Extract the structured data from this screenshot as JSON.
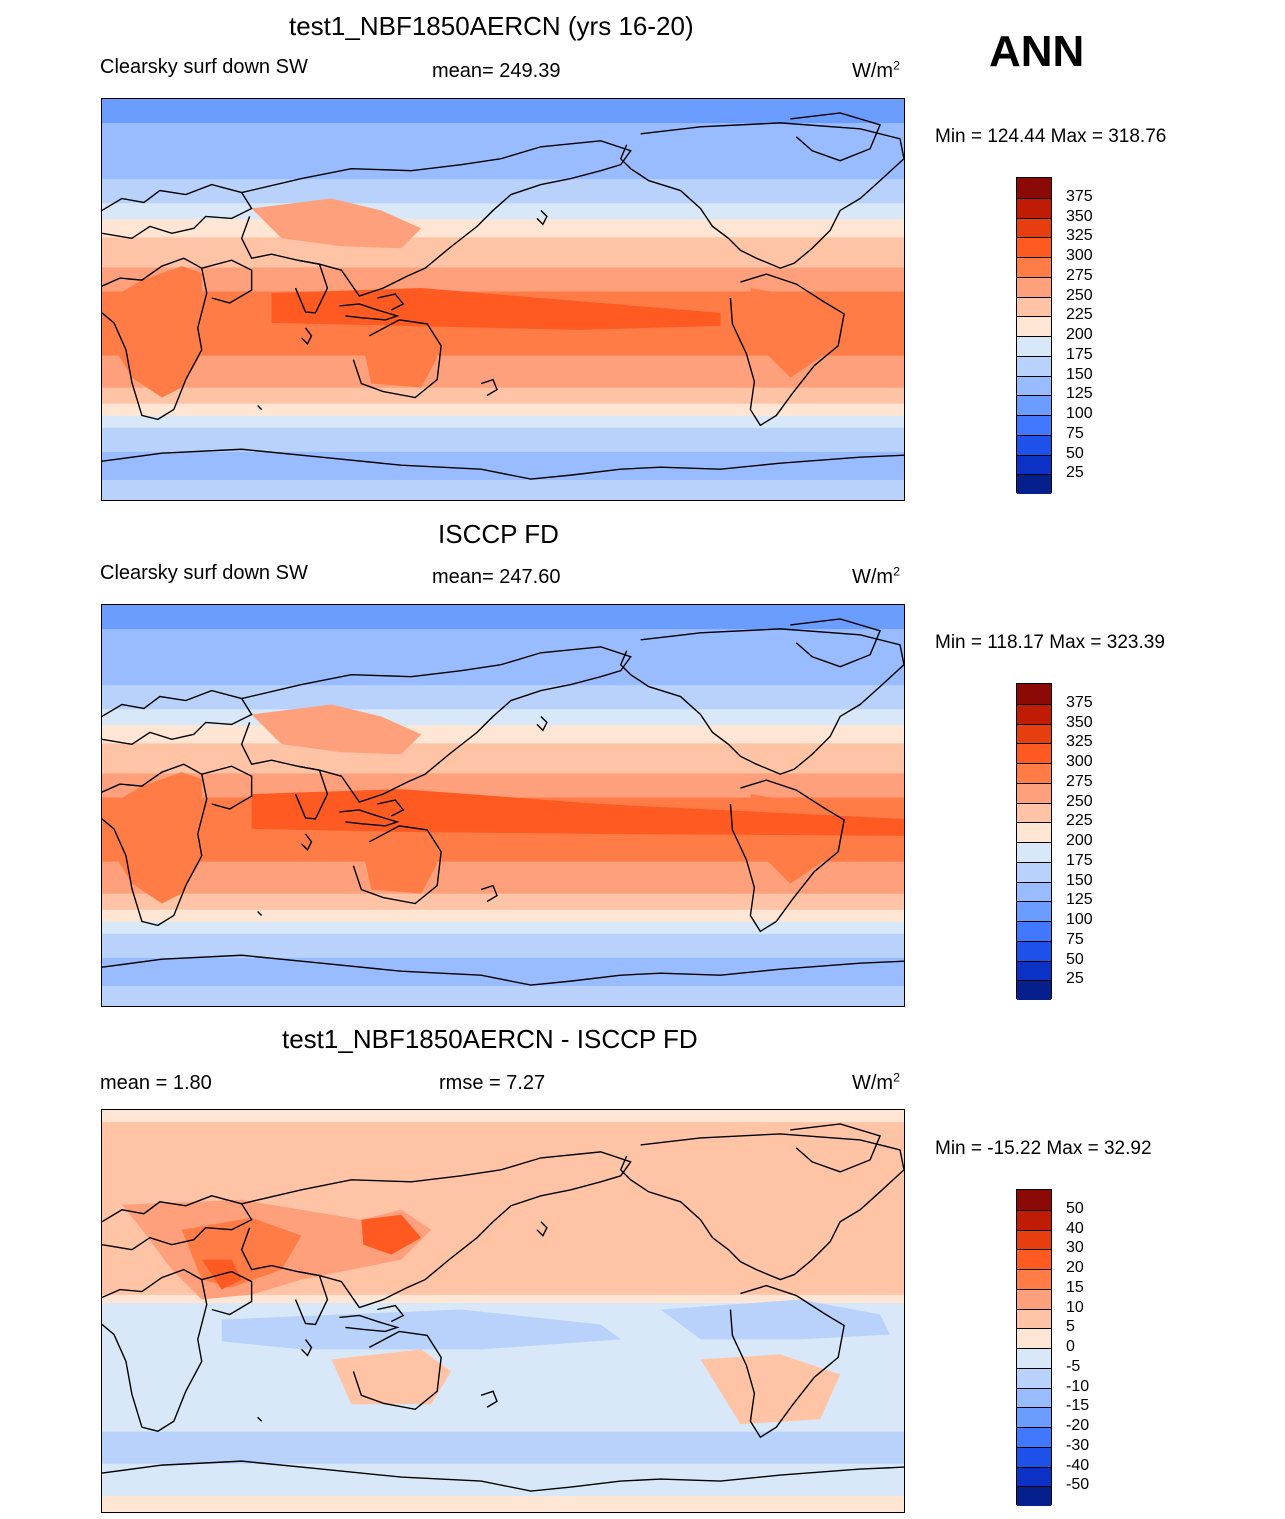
{
  "season": "ANN",
  "panels": [
    {
      "title": "test1_NBF1850AERCN (yrs 16-20)",
      "left_label": "Clearsky surf down SW",
      "center_label": "mean= 249.39",
      "units_base": "W/m",
      "units_exp": "2",
      "minmax": "Min = 124.44 Max = 318.76",
      "field": "model",
      "legend": {
        "labels": [
          "375",
          "350",
          "325",
          "300",
          "275",
          "250",
          "225",
          "200",
          "175",
          "150",
          "125",
          "100",
          "75",
          "50",
          "25"
        ],
        "colors": [
          "#8c0a06",
          "#c01c04",
          "#e63e0e",
          "#ff5a22",
          "#ff7c46",
          "#ffa07c",
          "#ffc4a6",
          "#ffe6d4",
          "#d8e8f8",
          "#b8d2fb",
          "#99bbff",
          "#6b9cff",
          "#4277ff",
          "#1e50ea",
          "#0b31c5",
          "#051f8c"
        ]
      }
    },
    {
      "title": "ISCCP FD",
      "left_label": "Clearsky surf down SW",
      "center_label": "mean= 247.60",
      "units_base": "W/m",
      "units_exp": "2",
      "minmax": "Min = 118.17 Max = 323.39",
      "field": "obs",
      "legend": {
        "labels": [
          "375",
          "350",
          "325",
          "300",
          "275",
          "250",
          "225",
          "200",
          "175",
          "150",
          "125",
          "100",
          "75",
          "50",
          "25"
        ],
        "colors": [
          "#8c0a06",
          "#c01c04",
          "#e63e0e",
          "#ff5a22",
          "#ff7c46",
          "#ffa07c",
          "#ffc4a6",
          "#ffe6d4",
          "#d8e8f8",
          "#b8d2fb",
          "#99bbff",
          "#6b9cff",
          "#4277ff",
          "#1e50ea",
          "#0b31c5",
          "#051f8c"
        ]
      }
    },
    {
      "title": "test1_NBF1850AERCN - ISCCP FD",
      "left_label": "mean =   1.80",
      "center_label": "rmse =   7.27",
      "units_base": "W/m",
      "units_exp": "2",
      "minmax": "Min = -15.22 Max =  32.92",
      "field": "diff",
      "legend": {
        "labels": [
          "50",
          "40",
          "30",
          "20",
          "15",
          "10",
          "5",
          "0",
          "-5",
          "-10",
          "-15",
          "-20",
          "-30",
          "-40",
          "-50"
        ],
        "colors": [
          "#8c0a06",
          "#c01c04",
          "#e63e0e",
          "#ff5a22",
          "#ff7c46",
          "#ffa07c",
          "#ffc4a6",
          "#ffe6d4",
          "#d8e8f8",
          "#b8d2fb",
          "#99bbff",
          "#6b9cff",
          "#4277ff",
          "#1e50ea",
          "#0b31c5",
          "#051f8c"
        ]
      }
    }
  ]
}
